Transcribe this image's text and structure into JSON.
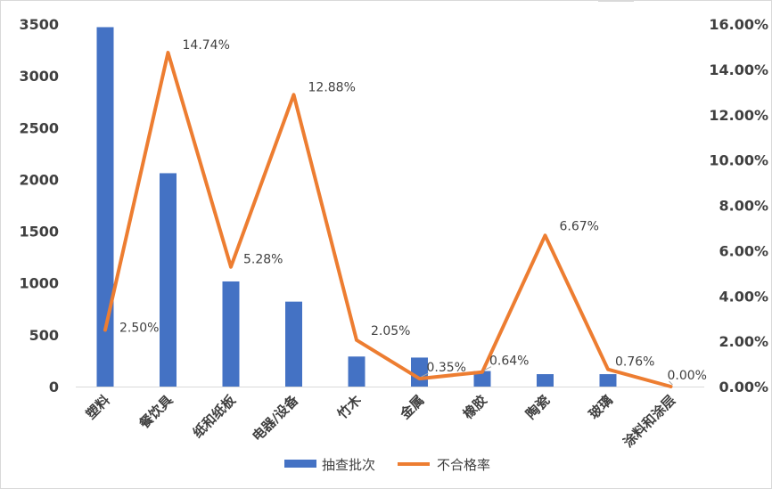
{
  "chart_data": {
    "type": "bar",
    "title": "",
    "categories": [
      "塑料",
      "餐饮具",
      "纸和纸板",
      "电器/设备",
      "竹木",
      "金属",
      "橡胶",
      "陶瓷",
      "玻璃",
      "涂料和涂层"
    ],
    "series": [
      {
        "name": "抽查批次",
        "type": "bar",
        "axis": "left",
        "color": "#4472C4",
        "values": [
          3470,
          2060,
          1015,
          820,
          290,
          280,
          150,
          120,
          120,
          0
        ]
      },
      {
        "name": "不合格率",
        "type": "line",
        "axis": "right",
        "color": "#ED7D31",
        "values": [
          2.5,
          14.74,
          5.28,
          12.88,
          2.05,
          0.35,
          0.64,
          6.67,
          0.76,
          0.0
        ],
        "labels": [
          "2.50%",
          "14.74%",
          "5.28%",
          "12.88%",
          "2.05%",
          "0.35%",
          "0.64%",
          "6.67%",
          "0.76%",
          "0.00%"
        ]
      }
    ],
    "y_left": {
      "ylim": [
        0,
        3500
      ],
      "ticks": [
        "0",
        "500",
        "1000",
        "1500",
        "2000",
        "2500",
        "3000",
        "3500"
      ]
    },
    "y_right": {
      "ylim": [
        0,
        16
      ],
      "ticks": [
        "0.00%",
        "2.00%",
        "4.00%",
        "6.00%",
        "8.00%",
        "10.00%",
        "12.00%",
        "14.00%",
        "16.00%"
      ]
    },
    "grid": false,
    "legend": "bottom"
  }
}
